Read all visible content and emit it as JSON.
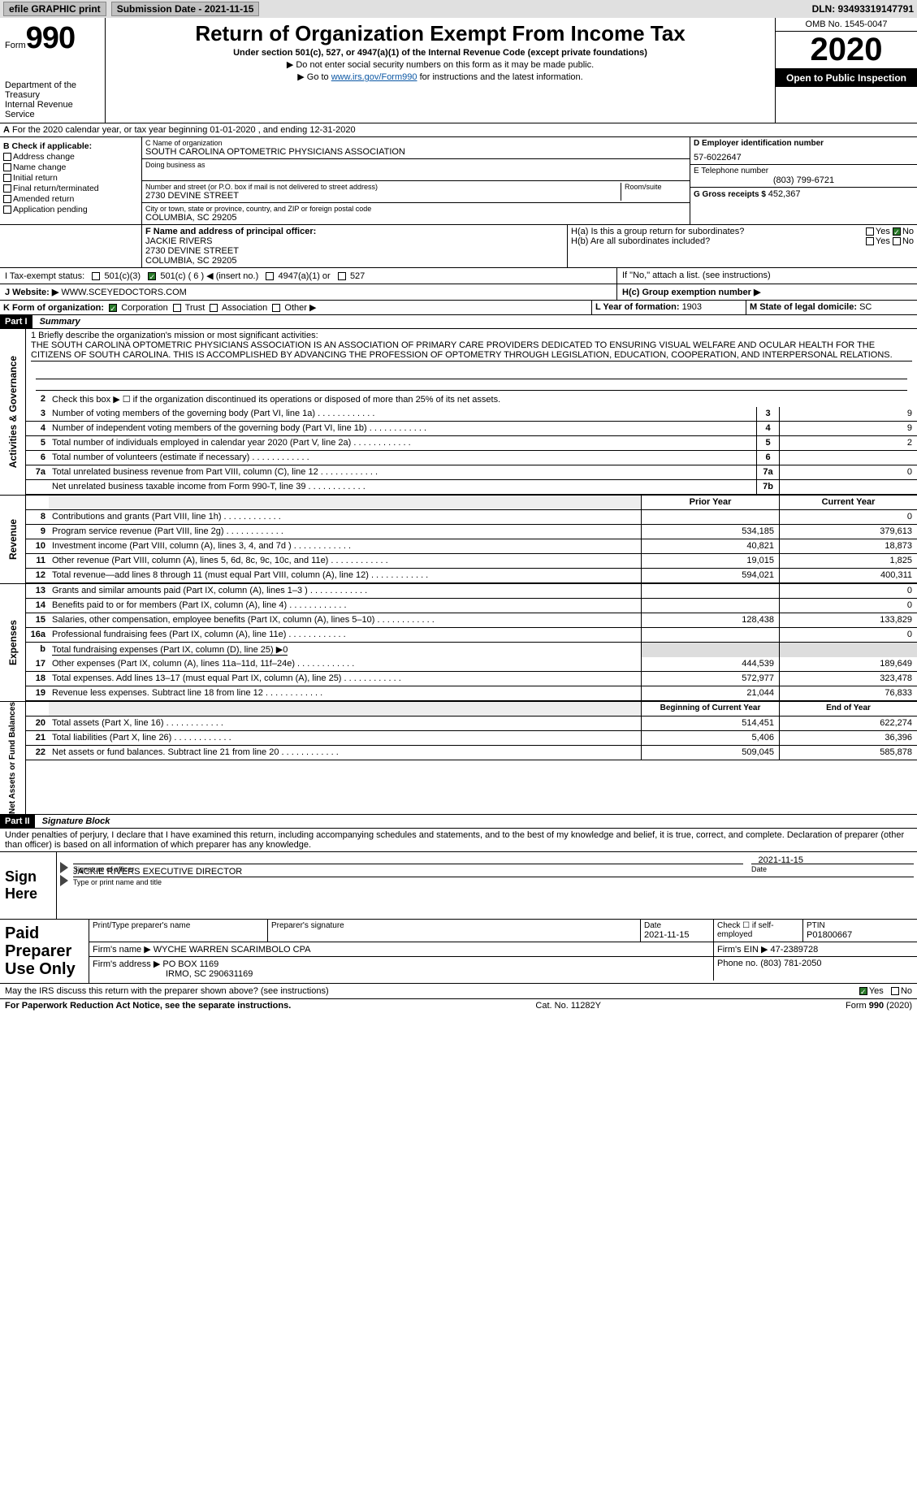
{
  "topbar": {
    "efile": "efile GRAPHIC print",
    "sub_lbl": "Submission Date - 2021-11-15",
    "dln": "DLN: 93493319147791"
  },
  "header": {
    "form_word": "Form",
    "form_num": "990",
    "dept1": "Department of the Treasury",
    "dept2": "Internal Revenue Service",
    "title": "Return of Organization Exempt From Income Tax",
    "sub": "Under section 501(c), 527, or 4947(a)(1) of the Internal Revenue Code (except private foundations)",
    "note1": "▶ Do not enter social security numbers on this form as it may be made public.",
    "note2_pre": "▶ Go to ",
    "note2_link": "www.irs.gov/Form990",
    "note2_suf": " for instructions and the latest information.",
    "omb": "OMB No. 1545-0047",
    "year": "2020",
    "open": "Open to Public Inspection"
  },
  "period": "For the 2020 calendar year, or tax year beginning 01-01-2020    , and ending 12-31-2020",
  "sectionA": "A",
  "sectionB": {
    "lbl": "B Check if applicable:",
    "items": [
      "Address change",
      "Name change",
      "Initial return",
      "Final return/terminated",
      "Amended return",
      "Application pending"
    ]
  },
  "sectionC": {
    "name_lbl": "C Name of organization",
    "name": "SOUTH CAROLINA OPTOMETRIC PHYSICIANS ASSOCIATION",
    "dba_lbl": "Doing business as",
    "street_lbl": "Number and street (or P.O. box if mail is not delivered to street address)",
    "street": "2730 DEVINE STREET",
    "room_lbl": "Room/suite",
    "city_lbl": "City or town, state or province, country, and ZIP or foreign postal code",
    "city": "COLUMBIA, SC  29205"
  },
  "sectionD": {
    "lbl": "D Employer identification number",
    "val": "57-6022647"
  },
  "sectionE": {
    "lbl": "E Telephone number",
    "val": "(803) 799-6721"
  },
  "sectionG": {
    "lbl": "G Gross receipts $ ",
    "val": "452,367"
  },
  "sectionF": {
    "lbl": "F  Name and address of principal officer:",
    "name": "JACKIE RIVERS",
    "street": "2730 DEVINE STREET",
    "city": "COLUMBIA, SC  29205"
  },
  "sectionH": {
    "a": "H(a)  Is this a group return for subordinates?",
    "b": "H(b)  Are all subordinates included?",
    "attach": "If \"No,\" attach a list. (see instructions)",
    "c": "H(c)  Group exemption number ▶",
    "yes": "Yes",
    "no": "No"
  },
  "rowI": {
    "lbl": "I   Tax-exempt status:",
    "opt1": "501(c)(3)",
    "opt2": "501(c) ( 6 ) ◀ (insert no.)",
    "opt3": "4947(a)(1) or",
    "opt4": "527"
  },
  "rowJ": {
    "lbl": "J   Website: ▶",
    "val": "WWW.SCEYEDOCTORS.COM"
  },
  "rowK": {
    "lbl": "K Form of organization:",
    "opts": [
      "Corporation",
      "Trust",
      "Association",
      "Other ▶"
    ]
  },
  "rowL": {
    "lbl": "L Year of formation: ",
    "val": "1903"
  },
  "rowM": {
    "lbl": "M State of legal domicile: ",
    "val": "SC"
  },
  "part1": {
    "hdr": "Part I",
    "title": "Summary"
  },
  "mission": {
    "lbl": "1  Briefly describe the organization's mission or most significant activities:",
    "text": "THE SOUTH CAROLINA OPTOMETRIC PHYSICIANS ASSOCIATION IS AN ASSOCIATION OF PRIMARY CARE PROVIDERS DEDICATED TO ENSURING VISUAL WELFARE AND OCULAR HEALTH FOR THE CITIZENS OF SOUTH CAROLINA. THIS IS ACCOMPLISHED BY ADVANCING THE PROFESSION OF OPTOMETRY THROUGH LEGISLATION, EDUCATION, COOPERATION, AND INTERPERSONAL RELATIONS."
  },
  "side": {
    "gov": "Activities & Governance",
    "rev": "Revenue",
    "exp": "Expenses",
    "net": "Net Assets or Fund Balances"
  },
  "gov_lines": [
    {
      "n": "2",
      "d": "Check this box ▶ ☐ if the organization discontinued its operations or disposed of more than 25% of its net assets."
    },
    {
      "n": "3",
      "d": "Number of voting members of the governing body (Part VI, line 1a)",
      "b": "3",
      "v": "9"
    },
    {
      "n": "4",
      "d": "Number of independent voting members of the governing body (Part VI, line 1b)",
      "b": "4",
      "v": "9"
    },
    {
      "n": "5",
      "d": "Total number of individuals employed in calendar year 2020 (Part V, line 2a)",
      "b": "5",
      "v": "2"
    },
    {
      "n": "6",
      "d": "Total number of volunteers (estimate if necessary)",
      "b": "6",
      "v": ""
    },
    {
      "n": "7a",
      "d": "Total unrelated business revenue from Part VIII, column (C), line 12",
      "b": "7a",
      "v": "0"
    },
    {
      "n": "",
      "d": "Net unrelated business taxable income from Form 990-T, line 39",
      "b": "7b",
      "v": ""
    }
  ],
  "col_hdr": {
    "py": "Prior Year",
    "cy": "Current Year"
  },
  "rev_lines": [
    {
      "n": "8",
      "d": "Contributions and grants (Part VIII, line 1h)",
      "py": "",
      "cy": "0"
    },
    {
      "n": "9",
      "d": "Program service revenue (Part VIII, line 2g)",
      "py": "534,185",
      "cy": "379,613"
    },
    {
      "n": "10",
      "d": "Investment income (Part VIII, column (A), lines 3, 4, and 7d )",
      "py": "40,821",
      "cy": "18,873"
    },
    {
      "n": "11",
      "d": "Other revenue (Part VIII, column (A), lines 5, 6d, 8c, 9c, 10c, and 11e)",
      "py": "19,015",
      "cy": "1,825"
    },
    {
      "n": "12",
      "d": "Total revenue—add lines 8 through 11 (must equal Part VIII, column (A), line 12)",
      "py": "594,021",
      "cy": "400,311"
    }
  ],
  "exp_lines": [
    {
      "n": "13",
      "d": "Grants and similar amounts paid (Part IX, column (A), lines 1–3 )",
      "py": "",
      "cy": "0"
    },
    {
      "n": "14",
      "d": "Benefits paid to or for members (Part IX, column (A), line 4)",
      "py": "",
      "cy": "0"
    },
    {
      "n": "15",
      "d": "Salaries, other compensation, employee benefits (Part IX, column (A), lines 5–10)",
      "py": "128,438",
      "cy": "133,829"
    },
    {
      "n": "16a",
      "d": "Professional fundraising fees (Part IX, column (A), line 11e)",
      "py": "",
      "cy": "0"
    },
    {
      "n": "b",
      "d": "Total fundraising expenses (Part IX, column (D), line 25) ▶0",
      "py": null,
      "cy": null
    },
    {
      "n": "17",
      "d": "Other expenses (Part IX, column (A), lines 11a–11d, 11f–24e)",
      "py": "444,539",
      "cy": "189,649"
    },
    {
      "n": "18",
      "d": "Total expenses. Add lines 13–17 (must equal Part IX, column (A), line 25)",
      "py": "572,977",
      "cy": "323,478"
    },
    {
      "n": "19",
      "d": "Revenue less expenses. Subtract line 18 from line 12",
      "py": "21,044",
      "cy": "76,833"
    }
  ],
  "net_hdr": {
    "py": "Beginning of Current Year",
    "cy": "End of Year"
  },
  "net_lines": [
    {
      "n": "20",
      "d": "Total assets (Part X, line 16)",
      "py": "514,451",
      "cy": "622,274"
    },
    {
      "n": "21",
      "d": "Total liabilities (Part X, line 26)",
      "py": "5,406",
      "cy": "36,396"
    },
    {
      "n": "22",
      "d": "Net assets or fund balances. Subtract line 21 from line 20",
      "py": "509,045",
      "cy": "585,878"
    }
  ],
  "part2": {
    "hdr": "Part II",
    "title": "Signature Block"
  },
  "penalty": "Under penalties of perjury, I declare that I have examined this return, including accompanying schedules and statements, and to the best of my knowledge and belief, it is true, correct, and complete. Declaration of preparer (other than officer) is based on all information of which preparer has any knowledge.",
  "sign": {
    "lbl": "Sign Here",
    "sig_officer": "Signature of officer",
    "date_lbl": "Date",
    "date_val": "2021-11-15",
    "name": "JACKIE RIVERS  EXECUTIVE DIRECTOR",
    "name_lbl": "Type or print name and title"
  },
  "prep": {
    "lbl": "Paid Preparer Use Only",
    "r1": {
      "c1": "Print/Type preparer's name",
      "c2": "Preparer's signature",
      "c3": "Date",
      "c3v": "2021-11-15",
      "c4": "Check ☐ if self-employed",
      "c5": "PTIN",
      "c5v": "P01800667"
    },
    "r2": {
      "c1": "Firm's name      ▶ WYCHE WARREN SCARIMBOLO CPA",
      "c2": "Firm's EIN ▶ 47-2389728"
    },
    "r3": {
      "c1": "Firm's address ▶ PO BOX 1169",
      "c1b": "IRMO, SC  290631169",
      "c2": "Phone no. (803) 781-2050"
    }
  },
  "discuss": {
    "txt": "May the IRS discuss this return with the preparer shown above? (see instructions)",
    "yes": "Yes",
    "no": "No"
  },
  "footer": {
    "left": "For Paperwork Reduction Act Notice, see the separate instructions.",
    "cat": "Cat. No. 11282Y",
    "form": "Form 990 (2020)"
  }
}
